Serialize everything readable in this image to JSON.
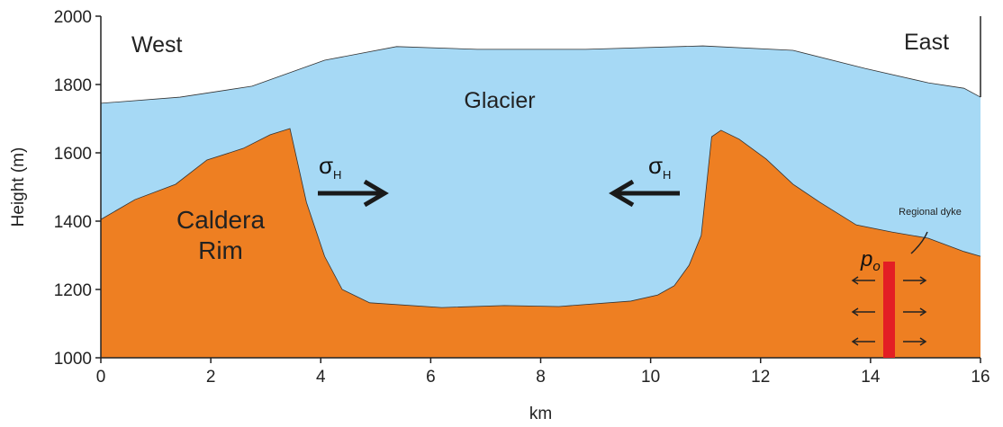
{
  "chart_data": {
    "type": "area",
    "xlabel": "km",
    "ylabel": "Height (m)",
    "xlim": [
      0,
      16
    ],
    "ylim": [
      1000,
      2000
    ],
    "xticks": [
      0,
      2,
      4,
      6,
      8,
      10,
      12,
      14,
      16
    ],
    "yticks": [
      1000,
      1200,
      1400,
      1600,
      1800,
      2000
    ],
    "series": [
      {
        "name": "Glacier",
        "color": "#a6d9f5",
        "x": [
          0,
          1.44,
          2.75,
          4.07,
          5.38,
          6.85,
          8.82,
          10.95,
          12.59,
          13.9,
          15.05,
          15.7,
          16
        ],
        "values": [
          1745,
          1763,
          1795,
          1871,
          1911,
          1903,
          1903,
          1913,
          1900,
          1847,
          1805,
          1789,
          1763
        ]
      },
      {
        "name": "Caldera Rim",
        "color": "#ee7f22",
        "x": [
          0,
          0.62,
          1.36,
          1.93,
          2.59,
          3.08,
          3.44,
          3.74,
          4.07,
          4.39,
          4.89,
          6.2,
          7.34,
          8.33,
          9.64,
          10.13,
          10.43,
          10.7,
          10.92,
          11.11,
          11.28,
          11.61,
          12.1,
          12.59,
          13.08,
          13.74,
          14.39,
          15.05,
          15.7,
          16
        ],
        "values": [
          1405,
          1463,
          1508,
          1579,
          1613,
          1653,
          1671,
          1455,
          1297,
          1200,
          1161,
          1147,
          1153,
          1150,
          1166,
          1184,
          1211,
          1271,
          1358,
          1647,
          1666,
          1640,
          1582,
          1508,
          1455,
          1389,
          1368,
          1350,
          1311,
          1297
        ]
      }
    ],
    "annotations": {
      "west": "West",
      "east": "East",
      "stress_left": {
        "symbol": "σ",
        "sub": "H"
      },
      "stress_right": {
        "symbol": "σ",
        "sub": "H"
      },
      "dyke": "Regional dyke",
      "pressure": {
        "symbol": "p",
        "sub": "o"
      }
    }
  }
}
